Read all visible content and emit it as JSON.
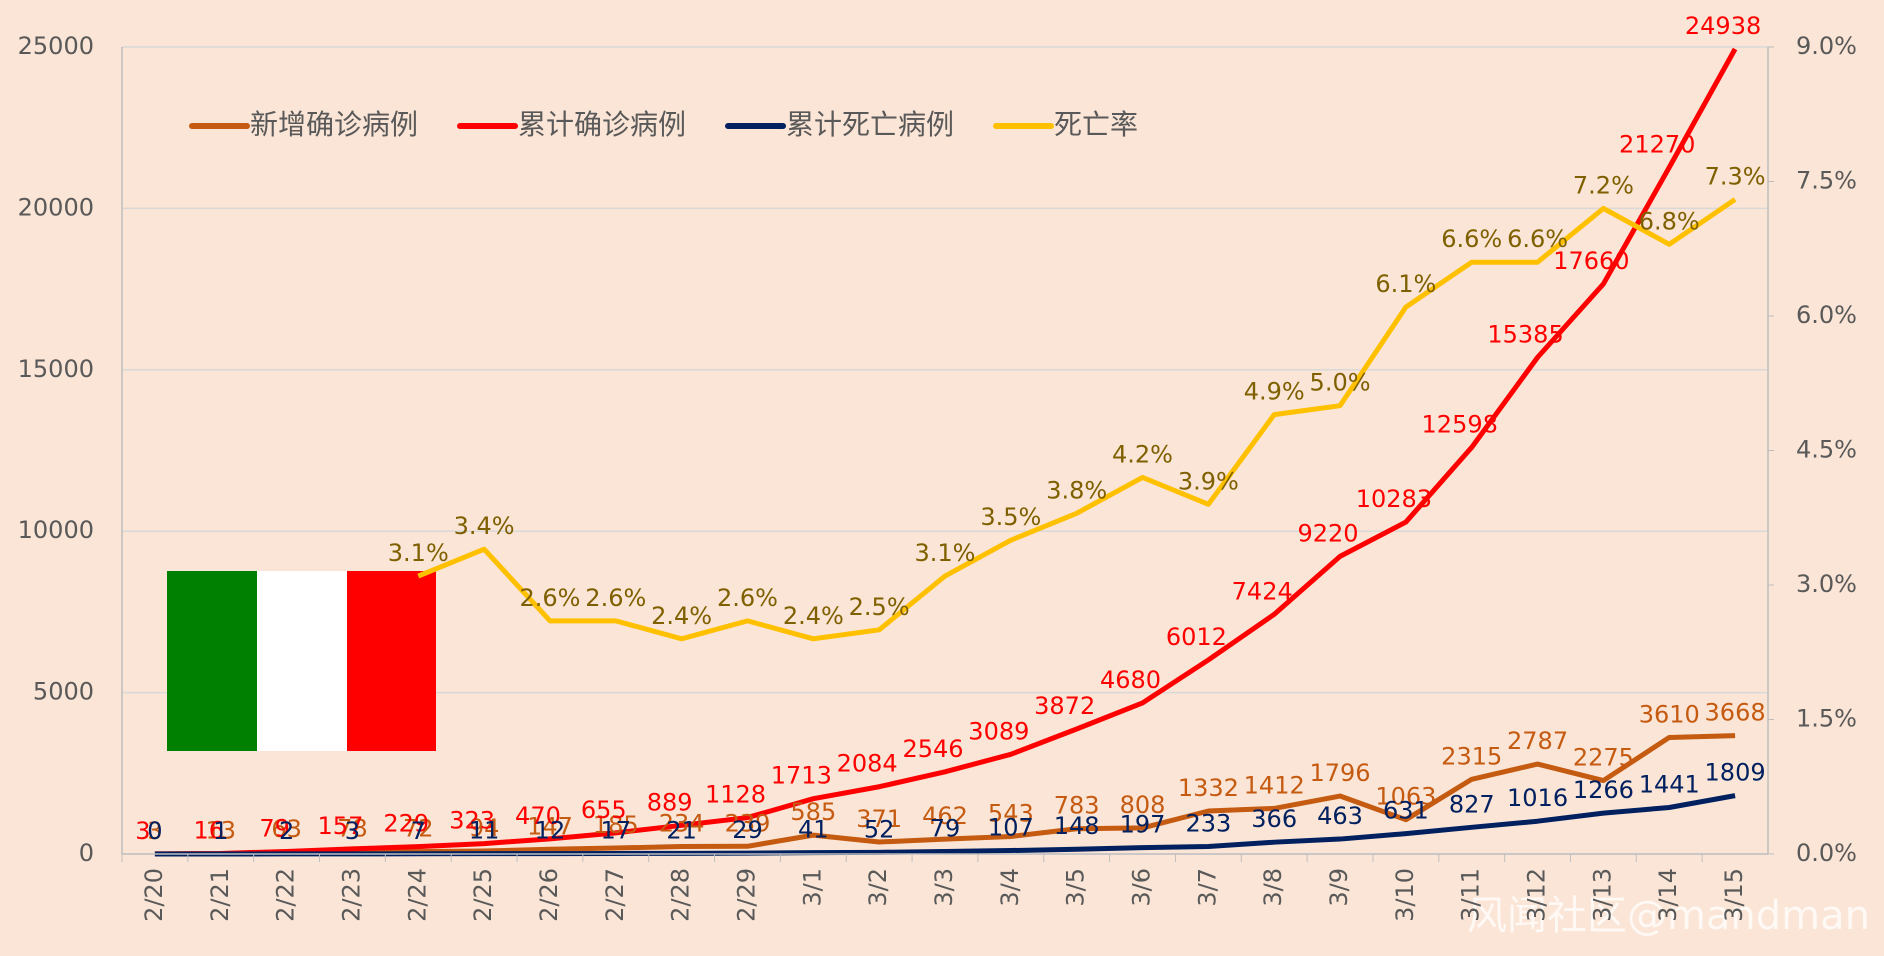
{
  "chart_data": {
    "type": "line",
    "categories": [
      "2/20",
      "2/21",
      "2/22",
      "2/23",
      "2/24",
      "2/25",
      "2/26",
      "2/27",
      "2/28",
      "2/29",
      "3/1",
      "3/2",
      "3/3",
      "3/4",
      "3/5",
      "3/6",
      "3/7",
      "3/8",
      "3/9",
      "3/10",
      "3/11",
      "3/12",
      "3/13",
      "3/14",
      "3/15"
    ],
    "series": [
      {
        "name": "新增确诊病例",
        "color": "#c55a11",
        "label_color": "#c55a11",
        "values": [
          3,
          13,
          63,
          78,
          72,
          94,
          147,
          185,
          234,
          239,
          585,
          371,
          462,
          543,
          783,
          808,
          1332,
          1412,
          1796,
          1063,
          2315,
          2787,
          2275,
          3610,
          3668
        ]
      },
      {
        "name": "累计确诊病例",
        "color": "#ff0000",
        "label_color": "#ff0000",
        "values": [
          3,
          16,
          79,
          157,
          229,
          323,
          470,
          655,
          889,
          1128,
          1713,
          2084,
          2546,
          3089,
          3872,
          4680,
          6012,
          7424,
          9220,
          10283,
          12598,
          15385,
          17660,
          21270,
          24938
        ]
      },
      {
        "name": "累计死亡病例",
        "color": "#002060",
        "label_color": "#002060",
        "values": [
          0,
          1,
          2,
          3,
          7,
          11,
          12,
          17,
          21,
          29,
          41,
          52,
          79,
          107,
          148,
          197,
          233,
          366,
          463,
          631,
          827,
          1016,
          1266,
          1441,
          1809
        ]
      },
      {
        "name": "死亡率",
        "color": "#ffc000",
        "label_color": "#7f6000",
        "axis": "y2",
        "values": [
          null,
          null,
          null,
          null,
          3.1,
          3.4,
          2.6,
          2.6,
          2.4,
          2.6,
          2.4,
          2.5,
          3.1,
          3.5,
          3.8,
          4.2,
          3.9,
          4.9,
          5.0,
          6.1,
          6.6,
          6.6,
          7.2,
          6.8,
          7.3
        ],
        "value_labels": [
          null,
          null,
          null,
          null,
          "3.1%",
          "3.4%",
          "2.6%",
          "2.6%",
          "2.4%",
          "2.6%",
          "2.4%",
          "2.5%",
          "3.1%",
          "3.5%",
          "3.8%",
          "4.2%",
          "3.9%",
          "4.9%",
          "5.0%",
          "6.1%",
          "6.6%",
          "6.6%",
          "7.2%",
          "6.8%",
          "7.3%"
        ]
      }
    ],
    "ylim": [
      0,
      25000
    ],
    "yticks": [
      0,
      5000,
      10000,
      15000,
      20000,
      25000
    ],
    "y2lim": [
      0,
      9
    ],
    "y2ticks": [
      {
        "value": 0,
        "label": "0.0%"
      },
      {
        "value": 1.5,
        "label": "1.5%"
      },
      {
        "value": 3,
        "label": "3.0%"
      },
      {
        "value": 4.5,
        "label": "4.5%"
      },
      {
        "value": 6,
        "label": "6.0%"
      },
      {
        "value": 7.5,
        "label": "7.5%"
      },
      {
        "value": 9,
        "label": "9.0%"
      }
    ],
    "grid": true,
    "legend": "top-left",
    "watermark": "风闻社区@mandman"
  }
}
